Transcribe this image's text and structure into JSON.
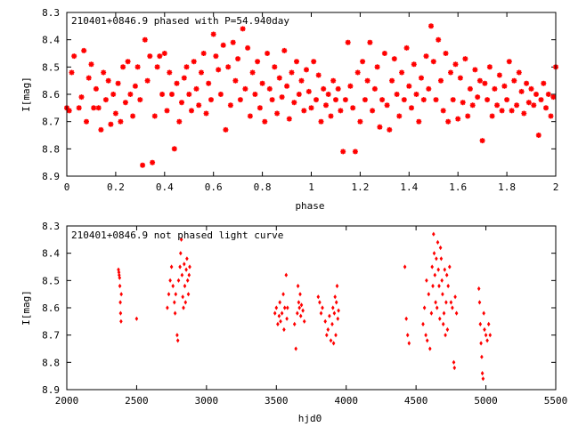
{
  "chart_data": [
    {
      "type": "scatter",
      "title": "210401+0846.9 phased with P=54.940day",
      "xlabel": "phase",
      "ylabel": "I[mag]",
      "xlim": [
        0,
        2
      ],
      "ylim": [
        8.3,
        8.9
      ],
      "y_inverted": true,
      "xticks": [
        "0",
        "0.2",
        "0.4",
        "0.6",
        "0.8",
        "1",
        "1.2",
        "1.4",
        "1.6",
        "1.8",
        "2"
      ],
      "yticks": [
        "8.3",
        "8.4",
        "8.5",
        "8.6",
        "8.7",
        "8.8",
        "8.9"
      ],
      "marker_color": "#ff0000",
      "marker": "star",
      "points": [
        [
          0.0,
          8.65
        ],
        [
          0.01,
          8.66
        ],
        [
          0.02,
          8.52
        ],
        [
          0.03,
          8.46
        ],
        [
          0.05,
          8.65
        ],
        [
          0.06,
          8.61
        ],
        [
          0.07,
          8.44
        ],
        [
          0.08,
          8.7
        ],
        [
          0.09,
          8.54
        ],
        [
          0.1,
          8.49
        ],
        [
          0.11,
          8.65
        ],
        [
          0.12,
          8.58
        ],
        [
          0.13,
          8.65
        ],
        [
          0.14,
          8.73
        ],
        [
          0.15,
          8.52
        ],
        [
          0.16,
          8.62
        ],
        [
          0.17,
          8.55
        ],
        [
          0.18,
          8.71
        ],
        [
          0.19,
          8.6
        ],
        [
          0.2,
          8.67
        ],
        [
          0.21,
          8.56
        ],
        [
          0.22,
          8.7
        ],
        [
          0.23,
          8.5
        ],
        [
          0.24,
          8.63
        ],
        [
          0.25,
          8.48
        ],
        [
          0.26,
          8.6
        ],
        [
          0.27,
          8.68
        ],
        [
          0.28,
          8.57
        ],
        [
          0.29,
          8.5
        ],
        [
          0.3,
          8.62
        ],
        [
          0.31,
          8.86
        ],
        [
          0.32,
          8.4
        ],
        [
          0.33,
          8.55
        ],
        [
          0.34,
          8.46
        ],
        [
          0.35,
          8.85
        ],
        [
          0.36,
          8.68
        ],
        [
          0.37,
          8.5
        ],
        [
          0.38,
          8.46
        ],
        [
          0.39,
          8.6
        ],
        [
          0.4,
          8.45
        ],
        [
          0.41,
          8.66
        ],
        [
          0.42,
          8.52
        ],
        [
          0.43,
          8.6
        ],
        [
          0.44,
          8.8
        ],
        [
          0.45,
          8.56
        ],
        [
          0.46,
          8.7
        ],
        [
          0.47,
          8.63
        ],
        [
          0.48,
          8.54
        ],
        [
          0.49,
          8.5
        ],
        [
          0.5,
          8.6
        ],
        [
          0.51,
          8.66
        ],
        [
          0.52,
          8.48
        ],
        [
          0.53,
          8.58
        ],
        [
          0.54,
          8.64
        ],
        [
          0.55,
          8.52
        ],
        [
          0.56,
          8.45
        ],
        [
          0.57,
          8.67
        ],
        [
          0.58,
          8.56
        ],
        [
          0.59,
          8.62
        ],
        [
          0.6,
          8.38
        ],
        [
          0.61,
          8.46
        ],
        [
          0.62,
          8.51
        ],
        [
          0.63,
          8.6
        ],
        [
          0.64,
          8.42
        ],
        [
          0.65,
          8.73
        ],
        [
          0.66,
          8.5
        ],
        [
          0.67,
          8.64
        ],
        [
          0.68,
          8.41
        ],
        [
          0.69,
          8.55
        ],
        [
          0.7,
          8.47
        ],
        [
          0.71,
          8.62
        ],
        [
          0.72,
          8.36
        ],
        [
          0.73,
          8.58
        ],
        [
          0.74,
          8.43
        ],
        [
          0.75,
          8.68
        ],
        [
          0.76,
          8.52
        ],
        [
          0.77,
          8.6
        ],
        [
          0.78,
          8.48
        ],
        [
          0.79,
          8.65
        ],
        [
          0.8,
          8.56
        ],
        [
          0.81,
          8.7
        ],
        [
          0.82,
          8.45
        ],
        [
          0.83,
          8.58
        ],
        [
          0.84,
          8.62
        ],
        [
          0.85,
          8.5
        ],
        [
          0.86,
          8.67
        ],
        [
          0.87,
          8.54
        ],
        [
          0.88,
          8.61
        ],
        [
          0.89,
          8.44
        ],
        [
          0.9,
          8.57
        ],
        [
          0.91,
          8.69
        ],
        [
          0.92,
          8.52
        ],
        [
          0.93,
          8.63
        ],
        [
          0.94,
          8.48
        ],
        [
          0.95,
          8.6
        ],
        [
          0.96,
          8.55
        ],
        [
          0.97,
          8.66
        ],
        [
          0.98,
          8.51
        ],
        [
          0.99,
          8.59
        ],
        [
          1.0,
          8.65
        ],
        [
          1.01,
          8.48
        ],
        [
          1.02,
          8.62
        ],
        [
          1.03,
          8.53
        ],
        [
          1.04,
          8.7
        ],
        [
          1.05,
          8.58
        ],
        [
          1.06,
          8.64
        ],
        [
          1.07,
          8.6
        ],
        [
          1.08,
          8.68
        ],
        [
          1.09,
          8.55
        ],
        [
          1.1,
          8.62
        ],
        [
          1.11,
          8.58
        ],
        [
          1.12,
          8.66
        ],
        [
          1.13,
          8.81
        ],
        [
          1.14,
          8.62
        ],
        [
          1.15,
          8.41
        ],
        [
          1.16,
          8.57
        ],
        [
          1.17,
          8.65
        ],
        [
          1.18,
          8.81
        ],
        [
          1.19,
          8.52
        ],
        [
          1.2,
          8.7
        ],
        [
          1.21,
          8.48
        ],
        [
          1.22,
          8.62
        ],
        [
          1.23,
          8.55
        ],
        [
          1.24,
          8.41
        ],
        [
          1.25,
          8.66
        ],
        [
          1.26,
          8.58
        ],
        [
          1.27,
          8.5
        ],
        [
          1.28,
          8.72
        ],
        [
          1.29,
          8.62
        ],
        [
          1.3,
          8.45
        ],
        [
          1.31,
          8.64
        ],
        [
          1.32,
          8.73
        ],
        [
          1.33,
          8.55
        ],
        [
          1.34,
          8.47
        ],
        [
          1.35,
          8.6
        ],
        [
          1.36,
          8.68
        ],
        [
          1.37,
          8.52
        ],
        [
          1.38,
          8.62
        ],
        [
          1.39,
          8.43
        ],
        [
          1.4,
          8.57
        ],
        [
          1.41,
          8.65
        ],
        [
          1.42,
          8.49
        ],
        [
          1.43,
          8.6
        ],
        [
          1.44,
          8.7
        ],
        [
          1.45,
          8.54
        ],
        [
          1.46,
          8.62
        ],
        [
          1.47,
          8.46
        ],
        [
          1.48,
          8.58
        ],
        [
          1.49,
          8.35
        ],
        [
          1.5,
          8.48
        ],
        [
          1.51,
          8.62
        ],
        [
          1.52,
          8.4
        ],
        [
          1.53,
          8.55
        ],
        [
          1.54,
          8.66
        ],
        [
          1.55,
          8.45
        ],
        [
          1.56,
          8.7
        ],
        [
          1.57,
          8.52
        ],
        [
          1.58,
          8.62
        ],
        [
          1.59,
          8.49
        ],
        [
          1.6,
          8.69
        ],
        [
          1.61,
          8.54
        ],
        [
          1.62,
          8.63
        ],
        [
          1.63,
          8.47
        ],
        [
          1.64,
          8.68
        ],
        [
          1.65,
          8.58
        ],
        [
          1.66,
          8.64
        ],
        [
          1.67,
          8.51
        ],
        [
          1.68,
          8.61
        ],
        [
          1.69,
          8.55
        ],
        [
          1.7,
          8.77
        ],
        [
          1.71,
          8.56
        ],
        [
          1.72,
          8.62
        ],
        [
          1.73,
          8.5
        ],
        [
          1.74,
          8.68
        ],
        [
          1.75,
          8.58
        ],
        [
          1.76,
          8.64
        ],
        [
          1.77,
          8.53
        ],
        [
          1.78,
          8.66
        ],
        [
          1.79,
          8.57
        ],
        [
          1.8,
          8.62
        ],
        [
          1.81,
          8.48
        ],
        [
          1.82,
          8.66
        ],
        [
          1.83,
          8.55
        ],
        [
          1.84,
          8.64
        ],
        [
          1.85,
          8.52
        ],
        [
          1.86,
          8.59
        ],
        [
          1.87,
          8.67
        ],
        [
          1.88,
          8.56
        ],
        [
          1.89,
          8.63
        ],
        [
          1.9,
          8.58
        ],
        [
          1.91,
          8.64
        ],
        [
          1.92,
          8.6
        ],
        [
          1.93,
          8.75
        ],
        [
          1.94,
          8.62
        ],
        [
          1.95,
          8.56
        ],
        [
          1.96,
          8.65
        ],
        [
          1.97,
          8.6
        ],
        [
          1.98,
          8.68
        ],
        [
          1.99,
          8.61
        ],
        [
          2.0,
          8.5
        ]
      ]
    },
    {
      "type": "scatter",
      "title": "210401+0846.9 not phased light curve",
      "xlabel": "hjd0",
      "ylabel": "I[mag]",
      "xlim": [
        2000,
        5500
      ],
      "ylim": [
        8.3,
        8.9
      ],
      "y_inverted": true,
      "xticks": [
        "2000",
        "2500",
        "3000",
        "3500",
        "4000",
        "4500",
        "5000",
        "5500"
      ],
      "yticks": [
        "8.3",
        "8.4",
        "8.5",
        "8.6",
        "8.7",
        "8.8",
        "8.9"
      ],
      "marker_color": "#ff0000",
      "marker": "diamond",
      "points": [
        [
          2370,
          8.46
        ],
        [
          2373,
          8.47
        ],
        [
          2375,
          8.48
        ],
        [
          2378,
          8.49
        ],
        [
          2380,
          8.52
        ],
        [
          2383,
          8.58
        ],
        [
          2385,
          8.62
        ],
        [
          2388,
          8.65
        ],
        [
          2390,
          8.55
        ],
        [
          2500,
          8.64
        ],
        [
          2720,
          8.6
        ],
        [
          2730,
          8.55
        ],
        [
          2740,
          8.5
        ],
        [
          2750,
          8.45
        ],
        [
          2760,
          8.52
        ],
        [
          2770,
          8.58
        ],
        [
          2775,
          8.62
        ],
        [
          2780,
          8.55
        ],
        [
          2790,
          8.7
        ],
        [
          2795,
          8.72
        ],
        [
          2800,
          8.5
        ],
        [
          2810,
          8.45
        ],
        [
          2815,
          8.4
        ],
        [
          2820,
          8.35
        ],
        [
          2825,
          8.48
        ],
        [
          2830,
          8.56
        ],
        [
          2835,
          8.6
        ],
        [
          2840,
          8.44
        ],
        [
          2845,
          8.52
        ],
        [
          2850,
          8.58
        ],
        [
          2855,
          8.46
        ],
        [
          2860,
          8.42
        ],
        [
          2865,
          8.5
        ],
        [
          2870,
          8.55
        ],
        [
          2875,
          8.48
        ],
        [
          2880,
          8.45
        ],
        [
          3490,
          8.62
        ],
        [
          3500,
          8.6
        ],
        [
          3510,
          8.66
        ],
        [
          3520,
          8.63
        ],
        [
          3525,
          8.58
        ],
        [
          3530,
          8.65
        ],
        [
          3540,
          8.62
        ],
        [
          3550,
          8.55
        ],
        [
          3555,
          8.68
        ],
        [
          3560,
          8.6
        ],
        [
          3570,
          8.48
        ],
        [
          3575,
          8.64
        ],
        [
          3580,
          8.6
        ],
        [
          3630,
          8.66
        ],
        [
          3640,
          8.75
        ],
        [
          3650,
          8.62
        ],
        [
          3655,
          8.52
        ],
        [
          3660,
          8.58
        ],
        [
          3665,
          8.6
        ],
        [
          3670,
          8.55
        ],
        [
          3675,
          8.63
        ],
        [
          3680,
          8.59
        ],
        [
          3690,
          8.61
        ],
        [
          3700,
          8.65
        ],
        [
          3800,
          8.56
        ],
        [
          3810,
          8.58
        ],
        [
          3820,
          8.62
        ],
        [
          3830,
          8.6
        ],
        [
          3850,
          8.65
        ],
        [
          3860,
          8.7
        ],
        [
          3870,
          8.68
        ],
        [
          3880,
          8.63
        ],
        [
          3890,
          8.72
        ],
        [
          3900,
          8.66
        ],
        [
          3905,
          8.6
        ],
        [
          3910,
          8.73
        ],
        [
          3915,
          8.62
        ],
        [
          3920,
          8.56
        ],
        [
          3925,
          8.7
        ],
        [
          3930,
          8.58
        ],
        [
          3935,
          8.52
        ],
        [
          3940,
          8.64
        ],
        [
          3945,
          8.61
        ],
        [
          4420,
          8.45
        ],
        [
          4430,
          8.64
        ],
        [
          4440,
          8.7
        ],
        [
          4450,
          8.73
        ],
        [
          4550,
          8.66
        ],
        [
          4560,
          8.6
        ],
        [
          4570,
          8.7
        ],
        [
          4575,
          8.5
        ],
        [
          4580,
          8.72
        ],
        [
          4590,
          8.55
        ],
        [
          4600,
          8.75
        ],
        [
          4610,
          8.62
        ],
        [
          4615,
          8.45
        ],
        [
          4620,
          8.52
        ],
        [
          4625,
          8.33
        ],
        [
          4630,
          8.4
        ],
        [
          4635,
          8.48
        ],
        [
          4640,
          8.58
        ],
        [
          4645,
          8.42
        ],
        [
          4650,
          8.6
        ],
        [
          4655,
          8.36
        ],
        [
          4660,
          8.46
        ],
        [
          4665,
          8.52
        ],
        [
          4670,
          8.64
        ],
        [
          4675,
          8.38
        ],
        [
          4680,
          8.42
        ],
        [
          4685,
          8.5
        ],
        [
          4690,
          8.55
        ],
        [
          4695,
          8.66
        ],
        [
          4700,
          8.62
        ],
        [
          4705,
          8.46
        ],
        [
          4710,
          8.7
        ],
        [
          4715,
          8.58
        ],
        [
          4720,
          8.48
        ],
        [
          4725,
          8.68
        ],
        [
          4730,
          8.52
        ],
        [
          4740,
          8.45
        ],
        [
          4750,
          8.58
        ],
        [
          4760,
          8.6
        ],
        [
          4770,
          8.8
        ],
        [
          4775,
          8.82
        ],
        [
          4780,
          8.56
        ],
        [
          4790,
          8.62
        ],
        [
          4950,
          8.53
        ],
        [
          4955,
          8.58
        ],
        [
          4960,
          8.66
        ],
        [
          4965,
          8.73
        ],
        [
          4970,
          8.78
        ],
        [
          4975,
          8.84
        ],
        [
          4980,
          8.86
        ],
        [
          4985,
          8.62
        ],
        [
          4990,
          8.68
        ],
        [
          5000,
          8.7
        ],
        [
          5010,
          8.72
        ],
        [
          5020,
          8.66
        ],
        [
          5030,
          8.7
        ]
      ]
    }
  ]
}
